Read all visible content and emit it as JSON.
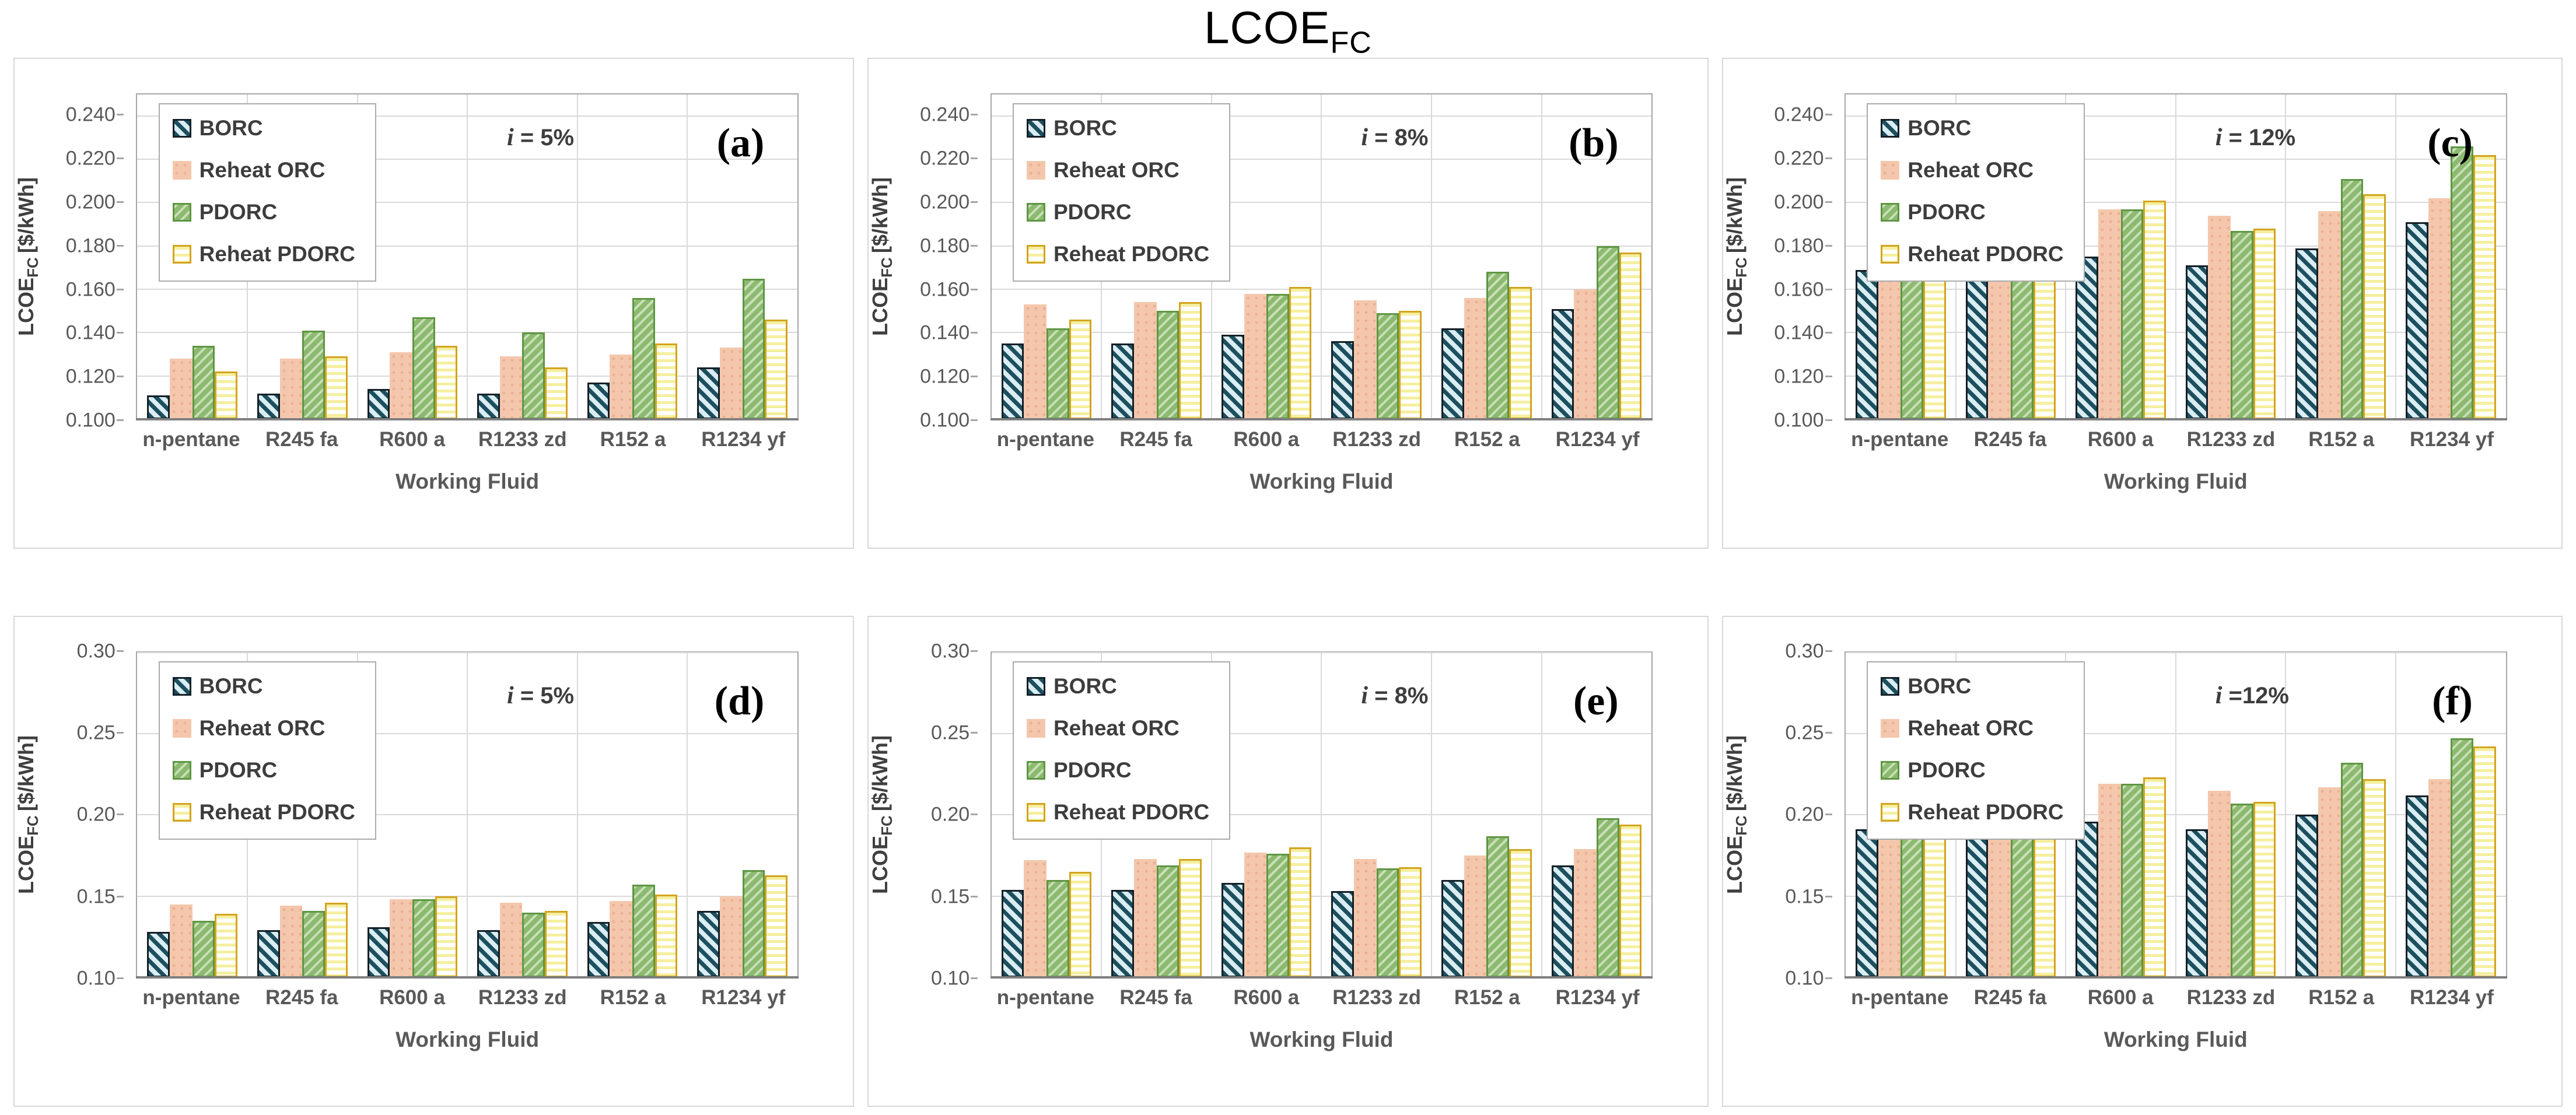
{
  "title": {
    "main": "LCOE",
    "sub": "FC"
  },
  "axis": {
    "y_main": "LCOE",
    "y_sub": "FC",
    "y_unit": "[$/kWh]",
    "x_title": "Working Fluid"
  },
  "categories": [
    "n-pentane",
    "R245 fa",
    "R600 a",
    "R1233 zd",
    "R152 a",
    "R1234 yf"
  ],
  "series_names": [
    "BORC",
    "Reheat ORC",
    "PDORC",
    "Reheat PDORC"
  ],
  "colors": {
    "borc_stripe_dark": "#1d4f5e",
    "borc_stripe_light": "#d9edf3",
    "borc_border": "#141f27",
    "reheat_orc_fill": "#f4c7ac",
    "reheat_orc_dot": "#eab195",
    "pdorc_fill": "#8cba70",
    "pdorc_stripe_light": "#c9dfb7",
    "pdorc_border": "#5e9643",
    "reheat_pdorc_stripe": "#f5ef9f",
    "reheat_pdorc_bg": "#ffffff",
    "reheat_pdorc_border": "#d2a41e",
    "gridline": "#d9d9d9",
    "plot_border": "#a6a6a6",
    "axis_line": "#7f7f7f",
    "tick_text": "#595959",
    "panel_border": "#d9d7d7"
  },
  "chart_data": [
    {
      "id": "a",
      "type": "bar",
      "panel_label": "(a)",
      "annotation": "i = 5%",
      "ylim": [
        0.1,
        0.25
      ],
      "yticks": [
        {
          "v": 0.1,
          "t": "0.100"
        },
        {
          "v": 0.12,
          "t": "0.120"
        },
        {
          "v": 0.14,
          "t": "0.140"
        },
        {
          "v": 0.16,
          "t": "0.160"
        },
        {
          "v": 0.18,
          "t": "0.180"
        },
        {
          "v": 0.2,
          "t": "0.200"
        },
        {
          "v": 0.22,
          "t": "0.220"
        },
        {
          "v": 0.24,
          "t": "0.240"
        }
      ],
      "series": [
        {
          "name": "BORC",
          "values": [
            0.111,
            0.112,
            0.114,
            0.112,
            0.117,
            0.124
          ]
        },
        {
          "name": "Reheat ORC",
          "values": [
            0.128,
            0.128,
            0.131,
            0.129,
            0.13,
            0.133
          ]
        },
        {
          "name": "PDORC",
          "values": [
            0.134,
            0.141,
            0.147,
            0.14,
            0.156,
            0.165
          ]
        },
        {
          "name": "Reheat PDORC",
          "values": [
            0.122,
            0.129,
            0.134,
            0.124,
            0.135,
            0.146
          ]
        }
      ]
    },
    {
      "id": "b",
      "type": "bar",
      "panel_label": "(b)",
      "annotation": "i = 8%",
      "ylim": [
        0.1,
        0.25
      ],
      "yticks": [
        {
          "v": 0.1,
          "t": "0.100"
        },
        {
          "v": 0.12,
          "t": "0.120"
        },
        {
          "v": 0.14,
          "t": "0.140"
        },
        {
          "v": 0.16,
          "t": "0.160"
        },
        {
          "v": 0.18,
          "t": "0.180"
        },
        {
          "v": 0.2,
          "t": "0.200"
        },
        {
          "v": 0.22,
          "t": "0.220"
        },
        {
          "v": 0.24,
          "t": "0.240"
        }
      ],
      "series": [
        {
          "name": "BORC",
          "values": [
            0.135,
            0.135,
            0.139,
            0.136,
            0.142,
            0.151
          ]
        },
        {
          "name": "Reheat ORC",
          "values": [
            0.153,
            0.154,
            0.158,
            0.155,
            0.156,
            0.16
          ]
        },
        {
          "name": "PDORC",
          "values": [
            0.142,
            0.15,
            0.158,
            0.149,
            0.168,
            0.18
          ]
        },
        {
          "name": "Reheat PDORC",
          "values": [
            0.146,
            0.154,
            0.161,
            0.15,
            0.161,
            0.177
          ]
        }
      ]
    },
    {
      "id": "c",
      "type": "bar",
      "panel_label": "(c)",
      "annotation": "i = 12%",
      "ylim": [
        0.1,
        0.25
      ],
      "yticks": [
        {
          "v": 0.1,
          "t": "0.100"
        },
        {
          "v": 0.12,
          "t": "0.120"
        },
        {
          "v": 0.14,
          "t": "0.140"
        },
        {
          "v": 0.16,
          "t": "0.160"
        },
        {
          "v": 0.18,
          "t": "0.180"
        },
        {
          "v": 0.2,
          "t": "0.200"
        },
        {
          "v": 0.22,
          "t": "0.220"
        },
        {
          "v": 0.24,
          "t": "0.240"
        }
      ],
      "series": [
        {
          "name": "BORC",
          "values": [
            0.169,
            0.17,
            0.175,
            0.171,
            0.179,
            0.191
          ]
        },
        {
          "name": "Reheat ORC",
          "values": [
            0.192,
            0.193,
            0.197,
            0.194,
            0.196,
            0.202
          ]
        },
        {
          "name": "PDORC",
          "values": [
            0.177,
            0.188,
            0.197,
            0.187,
            0.211,
            0.226
          ]
        },
        {
          "name": "Reheat PDORC",
          "values": [
            0.183,
            0.193,
            0.201,
            0.188,
            0.204,
            0.222
          ]
        }
      ]
    },
    {
      "id": "d",
      "type": "bar",
      "panel_label": "(d)",
      "annotation": "i = 5%",
      "ylim": [
        0.1,
        0.3
      ],
      "yticks": [
        {
          "v": 0.1,
          "t": "0.10"
        },
        {
          "v": 0.15,
          "t": "0.15"
        },
        {
          "v": 0.2,
          "t": "0.20"
        },
        {
          "v": 0.25,
          "t": "0.25"
        },
        {
          "v": 0.3,
          "t": "0.30"
        }
      ],
      "series": [
        {
          "name": "BORC",
          "values": [
            0.128,
            0.129,
            0.131,
            0.129,
            0.134,
            0.141
          ]
        },
        {
          "name": "Reheat ORC",
          "values": [
            0.145,
            0.144,
            0.148,
            0.146,
            0.147,
            0.15
          ]
        },
        {
          "name": "PDORC",
          "values": [
            0.135,
            0.141,
            0.148,
            0.14,
            0.157,
            0.166
          ]
        },
        {
          "name": "Reheat PDORC",
          "values": [
            0.139,
            0.146,
            0.15,
            0.141,
            0.151,
            0.163
          ]
        }
      ]
    },
    {
      "id": "e",
      "type": "bar",
      "panel_label": "(e)",
      "annotation": "i = 8%",
      "ylim": [
        0.1,
        0.3
      ],
      "yticks": [
        {
          "v": 0.1,
          "t": "0.10"
        },
        {
          "v": 0.15,
          "t": "0.15"
        },
        {
          "v": 0.2,
          "t": "0.20"
        },
        {
          "v": 0.25,
          "t": "0.25"
        },
        {
          "v": 0.3,
          "t": "0.30"
        }
      ],
      "series": [
        {
          "name": "BORC",
          "values": [
            0.154,
            0.154,
            0.158,
            0.153,
            0.16,
            0.169
          ]
        },
        {
          "name": "Reheat ORC",
          "values": [
            0.172,
            0.173,
            0.177,
            0.173,
            0.175,
            0.179
          ]
        },
        {
          "name": "PDORC",
          "values": [
            0.16,
            0.169,
            0.176,
            0.167,
            0.187,
            0.198
          ]
        },
        {
          "name": "Reheat PDORC",
          "values": [
            0.165,
            0.173,
            0.18,
            0.168,
            0.179,
            0.194
          ]
        }
      ]
    },
    {
      "id": "f",
      "type": "bar",
      "panel_label": "(f)",
      "annotation": "i =12%",
      "ylim": [
        0.1,
        0.3
      ],
      "yticks": [
        {
          "v": 0.1,
          "t": "0.10"
        },
        {
          "v": 0.15,
          "t": "0.15"
        },
        {
          "v": 0.2,
          "t": "0.20"
        },
        {
          "v": 0.25,
          "t": "0.25"
        },
        {
          "v": 0.3,
          "t": "0.30"
        }
      ],
      "series": [
        {
          "name": "BORC",
          "values": [
            0.191,
            0.192,
            0.196,
            0.191,
            0.2,
            0.212
          ]
        },
        {
          "name": "Reheat ORC",
          "values": [
            0.213,
            0.215,
            0.219,
            0.215,
            0.217,
            0.222
          ]
        },
        {
          "name": "PDORC",
          "values": [
            0.198,
            0.209,
            0.219,
            0.207,
            0.232,
            0.247
          ]
        },
        {
          "name": "Reheat PDORC",
          "values": [
            0.214,
            0.216,
            0.223,
            0.208,
            0.222,
            0.242
          ]
        }
      ]
    }
  ]
}
